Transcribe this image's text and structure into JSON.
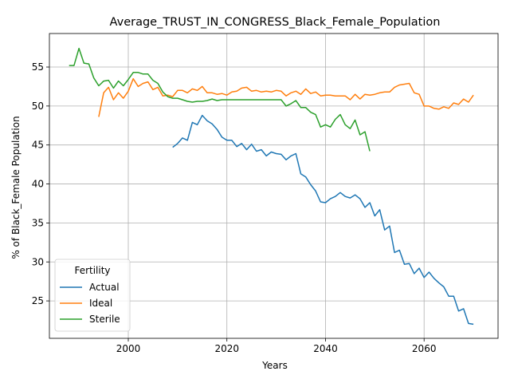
{
  "chart_data": {
    "type": "line",
    "title": "Average_TRUST_IN_CONGRESS_Black_Female_Population",
    "xlabel": "Years",
    "ylabel": "% of Black_Female Population",
    "xlim": [
      1984,
      2075
    ],
    "ylim": [
      20.2,
      59.3
    ],
    "xticks": [
      2000,
      2020,
      2040,
      2060
    ],
    "yticks": [
      25,
      30,
      35,
      40,
      45,
      50,
      55
    ],
    "grid": true,
    "legend": {
      "title": "Fertility",
      "position": "lower-left"
    },
    "series": [
      {
        "name": "Actual",
        "color": "#1f77b4",
        "x": [
          2009,
          2010,
          2011,
          2012,
          2013,
          2014,
          2015,
          2016,
          2017,
          2018,
          2019,
          2020,
          2021,
          2022,
          2023,
          2024,
          2025,
          2026,
          2027,
          2028,
          2029,
          2030,
          2031,
          2032,
          2033,
          2034,
          2035,
          2036,
          2037,
          2038,
          2039,
          2040,
          2041,
          2042,
          2043,
          2044,
          2045,
          2046,
          2047,
          2048,
          2049,
          2050,
          2051,
          2052,
          2053,
          2054,
          2055,
          2056,
          2057,
          2058,
          2059,
          2060,
          2061,
          2062,
          2063,
          2064,
          2065,
          2066,
          2067,
          2068,
          2069,
          2070
        ],
        "y": [
          44.7,
          45.2,
          45.9,
          45.6,
          47.9,
          47.6,
          48.8,
          48.1,
          47.7,
          47.0,
          46.0,
          45.6,
          45.6,
          44.8,
          45.2,
          44.4,
          45.1,
          44.2,
          44.4,
          43.6,
          44.1,
          43.9,
          43.8,
          43.1,
          43.6,
          43.9,
          41.3,
          40.9,
          39.9,
          39.1,
          37.7,
          37.6,
          38.1,
          38.4,
          38.9,
          38.4,
          38.2,
          38.6,
          38.1,
          37.0,
          37.6,
          35.9,
          36.7,
          34.1,
          34.6,
          31.2,
          31.5,
          29.7,
          29.8,
          28.5,
          29.2,
          28.0,
          28.7,
          27.9,
          27.3,
          26.8,
          25.6,
          25.6,
          23.7,
          24.0,
          22.1,
          22.0
        ]
      },
      {
        "name": "Ideal",
        "color": "#ff7f0e",
        "x": [
          1994,
          1995,
          1996,
          1997,
          1998,
          1999,
          2000,
          2001,
          2002,
          2003,
          2004,
          2005,
          2006,
          2007,
          2008,
          2009,
          2010,
          2011,
          2012,
          2013,
          2014,
          2015,
          2016,
          2017,
          2018,
          2019,
          2020,
          2021,
          2022,
          2023,
          2024,
          2025,
          2026,
          2027,
          2028,
          2029,
          2030,
          2031,
          2032,
          2033,
          2034,
          2035,
          2036,
          2037,
          2038,
          2039,
          2040,
          2041,
          2042,
          2043,
          2044,
          2045,
          2046,
          2047,
          2048,
          2049,
          2050,
          2051,
          2052,
          2053,
          2054,
          2055,
          2056,
          2057,
          2058,
          2059,
          2060,
          2061,
          2062,
          2063,
          2064,
          2065,
          2066,
          2067,
          2068,
          2069,
          2070
        ],
        "y": [
          48.6,
          51.7,
          52.4,
          50.8,
          51.7,
          51.0,
          51.9,
          53.5,
          52.5,
          52.9,
          53.1,
          52.1,
          52.4,
          51.3,
          51.4,
          51.2,
          52.0,
          52.0,
          51.7,
          52.2,
          52.0,
          52.5,
          51.7,
          51.7,
          51.5,
          51.6,
          51.4,
          51.8,
          51.9,
          52.3,
          52.4,
          51.9,
          52.0,
          51.8,
          51.9,
          51.8,
          52.0,
          51.9,
          51.3,
          51.7,
          51.9,
          51.5,
          52.2,
          51.6,
          51.8,
          51.3,
          51.4,
          51.4,
          51.3,
          51.3,
          51.3,
          50.8,
          51.5,
          50.9,
          51.5,
          51.4,
          51.5,
          51.7,
          51.8,
          51.8,
          52.4,
          52.7,
          52.8,
          52.9,
          51.7,
          51.5,
          50.0,
          50.0,
          49.7,
          49.6,
          49.9,
          49.7,
          50.4,
          50.2,
          50.9,
          50.5,
          51.4
        ]
      },
      {
        "name": "Sterile",
        "color": "#2ca02c",
        "x": [
          1988,
          1989,
          1990,
          1991,
          1992,
          1993,
          1994,
          1995,
          1996,
          1997,
          1998,
          1999,
          2000,
          2001,
          2002,
          2003,
          2004,
          2005,
          2006,
          2007,
          2008,
          2009,
          2010,
          2011,
          2012,
          2013,
          2014,
          2015,
          2016,
          2017,
          2018,
          2019,
          2020,
          2021,
          2022,
          2023,
          2024,
          2025,
          2026,
          2027,
          2028,
          2029,
          2030,
          2031,
          2032,
          2033,
          2034,
          2035,
          2036,
          2037,
          2038,
          2039,
          2040,
          2041,
          2042,
          2043,
          2044,
          2045,
          2046,
          2047,
          2048,
          2049
        ],
        "y": [
          55.2,
          55.2,
          57.4,
          55.5,
          55.4,
          53.6,
          52.6,
          53.2,
          53.3,
          52.3,
          53.2,
          52.6,
          53.4,
          54.3,
          54.3,
          54.1,
          54.1,
          53.3,
          52.9,
          51.8,
          51.2,
          51.0,
          51.0,
          50.8,
          50.6,
          50.5,
          50.6,
          50.6,
          50.7,
          50.9,
          50.7,
          50.8,
          50.8,
          50.8,
          50.8,
          50.8,
          50.8,
          50.8,
          50.8,
          50.8,
          50.8,
          50.8,
          50.8,
          50.8,
          50.0,
          50.3,
          50.7,
          49.8,
          49.8,
          49.2,
          48.9,
          47.3,
          47.6,
          47.3,
          48.3,
          48.9,
          47.6,
          47.1,
          48.2,
          46.3,
          46.7,
          44.2
        ]
      }
    ]
  }
}
